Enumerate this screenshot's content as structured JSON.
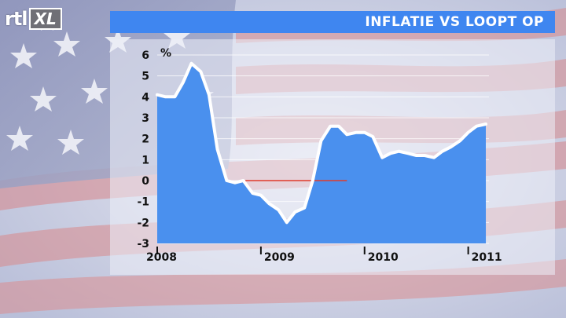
{
  "logo": {
    "rtl": "rtl",
    "xl": "XL"
  },
  "header": {
    "title": "INFLATIE VS LOOPT OP"
  },
  "colors": {
    "title_bar": "#3f86f0",
    "area_fill": "#4a90ee",
    "line": "#ffffff",
    "zero_line": "#e03a2a"
  },
  "chart_data": {
    "type": "area",
    "title": "INFLATIE VS LOOPT OP",
    "ylabel": "%",
    "xlabel": "",
    "ylim": [
      -3,
      6
    ],
    "yticks": [
      6,
      5,
      4,
      3,
      2,
      1,
      0,
      -1,
      -2,
      -3
    ],
    "xlim": [
      2008.0,
      2011.2
    ],
    "xticks": [
      {
        "label": "2008",
        "value": 2008.0
      },
      {
        "label": "2009",
        "value": 2009.0
      },
      {
        "label": "2010",
        "value": 2010.0
      },
      {
        "label": "2011",
        "value": 2011.0
      }
    ],
    "grid": true,
    "series": [
      {
        "x": [
          2008.0,
          2008.08,
          2008.17,
          2008.25,
          2008.33,
          2008.42,
          2008.5,
          2008.58,
          2008.67,
          2008.75,
          2008.83,
          2008.92,
          2009.0,
          2009.08,
          2009.17,
          2009.25,
          2009.33,
          2009.42,
          2009.5,
          2009.58,
          2009.67,
          2009.75,
          2009.83,
          2009.92,
          2010.0,
          2010.08,
          2010.17,
          2010.25,
          2010.33,
          2010.42,
          2010.5,
          2010.58,
          2010.67,
          2010.75,
          2010.83,
          2010.92,
          2011.0,
          2011.08,
          2011.17
        ],
        "values": [
          4.1,
          4.0,
          4.0,
          4.7,
          5.6,
          5.2,
          4.1,
          1.5,
          0.0,
          -0.1,
          0.0,
          -0.6,
          -0.7,
          -1.1,
          -1.4,
          -2.0,
          -1.5,
          -1.3,
          0.0,
          1.9,
          2.6,
          2.6,
          2.2,
          2.3,
          2.3,
          2.1,
          1.1,
          1.3,
          1.4,
          1.3,
          1.2,
          1.2,
          1.1,
          1.4,
          1.6,
          1.9,
          2.3,
          2.6,
          2.7
        ]
      }
    ]
  }
}
